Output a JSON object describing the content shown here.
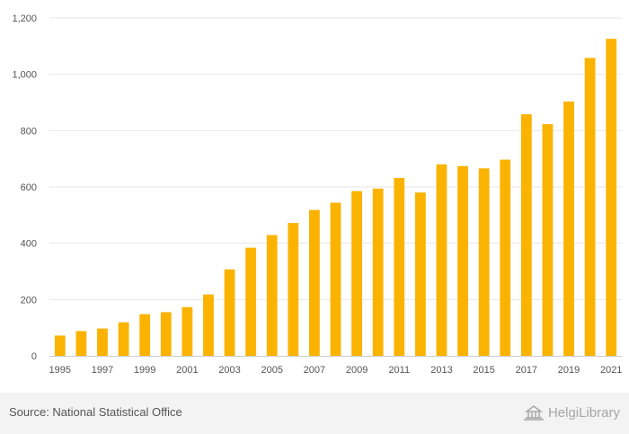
{
  "chart_data": {
    "type": "bar",
    "title": "",
    "xlabel": "",
    "ylabel": "",
    "ylim": [
      0,
      1200
    ],
    "yticks": [
      0,
      200,
      400,
      600,
      800,
      1000,
      1200
    ],
    "ytick_labels": [
      "0",
      "200",
      "400",
      "600",
      "800",
      "1,000",
      "1,200"
    ],
    "categories": [
      "1995",
      "1996",
      "1997",
      "1998",
      "1999",
      "2000",
      "2001",
      "2002",
      "2003",
      "2004",
      "2005",
      "2006",
      "2007",
      "2008",
      "2009",
      "2010",
      "2011",
      "2012",
      "2013",
      "2014",
      "2015",
      "2016",
      "2017",
      "2018",
      "2019",
      "2020",
      "2021"
    ],
    "xtick_labels": [
      "1995",
      "1997",
      "1999",
      "2001",
      "2003",
      "2005",
      "2007",
      "2009",
      "2011",
      "2013",
      "2015",
      "2017",
      "2019",
      "2021"
    ],
    "values": [
      72,
      88,
      97,
      119,
      148,
      155,
      173,
      218,
      307,
      384,
      429,
      472,
      518,
      544,
      585,
      594,
      632,
      580,
      680,
      674,
      666,
      697,
      858,
      823,
      903,
      1058,
      1126
    ],
    "bar_color": "#fbb302",
    "grid": true
  },
  "footer": {
    "source": "Source: National Statistical Office",
    "brand": "HelgiLibrary"
  },
  "colors": {
    "grid": "#e6e6e6",
    "axis": "#cccccc",
    "footer_bg": "#f3f3f3"
  }
}
